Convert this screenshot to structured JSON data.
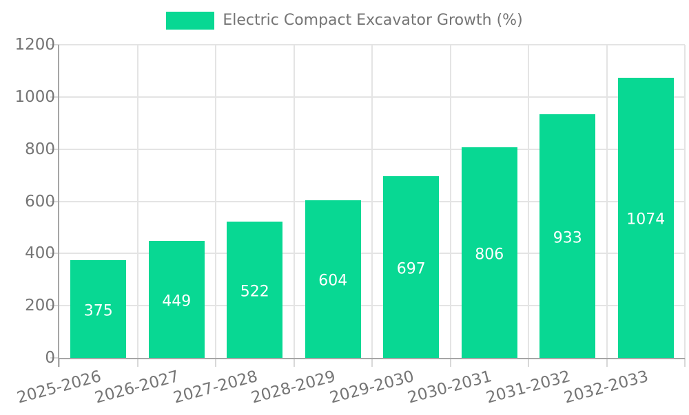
{
  "chart_data": {
    "type": "bar",
    "title": "Electric Compact Excavator Growth (%)",
    "legend": {
      "label": "Electric Compact Excavator Growth (%)",
      "position": "top-center"
    },
    "categories": [
      "2025-2026",
      "2026-2027",
      "2027-2028",
      "2028-2029",
      "2029-2030",
      "2030-2031",
      "2031-2032",
      "2032-2033"
    ],
    "values": [
      375,
      449,
      522,
      604,
      697,
      806,
      933,
      1074
    ],
    "value_labels": [
      "375",
      "449",
      "522",
      "604",
      "697",
      "806",
      "933",
      "1074"
    ],
    "xlabel": "",
    "ylabel": "",
    "ylim": [
      0,
      1200
    ],
    "yticks": [
      0,
      200,
      400,
      600,
      800,
      1000,
      1200
    ],
    "grid": true,
    "x_tick_rotation_deg": -15,
    "colors": {
      "bar": "#08D893",
      "bar_value_label": "#FFFFFF",
      "axis_line": "#A6A6A6",
      "grid_line": "#E4E4E4",
      "tick_mark": "#D8D8D8",
      "tick_label": "#757575",
      "legend_label": "#757575",
      "background": "#FFFFFF"
    }
  }
}
